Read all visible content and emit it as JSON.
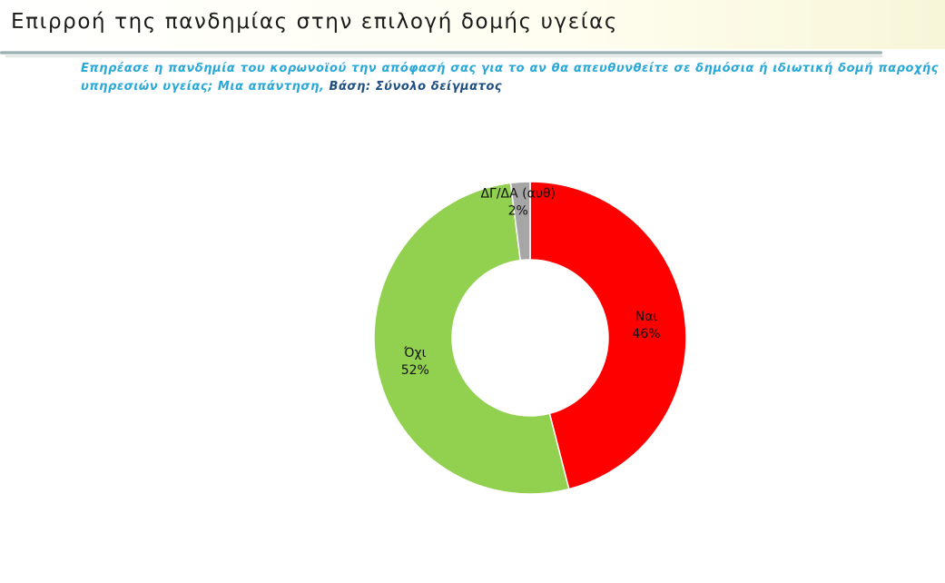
{
  "header": {
    "title": "Επιρροή της πανδημίας στην επιλογή δομής υγείας"
  },
  "question": {
    "text": "Επηρέασε η πανδημία του κορωνοϊού την απόφασή σας για το αν θα απευθυνθείτε σε δημόσια ή ιδιωτική δομή παροχής υπηρεσιών υγείας; Μια απάντηση, ",
    "base": "Βάση: Σύνολο δείγματος"
  },
  "chart_data": {
    "type": "pie",
    "donut": true,
    "title": "",
    "categories": [
      "Ναι",
      "Όχι",
      "ΔΓ/ΔΑ (αυθ)"
    ],
    "values": [
      46,
      52,
      2
    ],
    "value_labels": [
      "46%",
      "52%",
      "2%"
    ],
    "colors": [
      "#ff0000",
      "#92d050",
      "#a6a6a6"
    ],
    "legend": "none"
  }
}
